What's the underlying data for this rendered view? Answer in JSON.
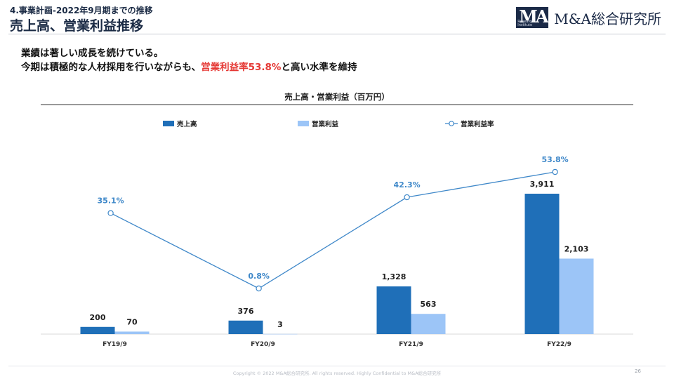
{
  "header": {
    "breadcrumb": "4.事業計画-2022年9月期までの推移",
    "title": "売上高、営業利益推移",
    "logo": {
      "brand": "M&A総合研究所",
      "mark_text": "MA",
      "mark_sub": "Research Institute"
    }
  },
  "lead": {
    "line1": "業績は著しい成長を続けている。",
    "line2_prefix": "今期は積極的な人材採用を行いながらも、",
    "line2_highlight": "営業利益率53.8%",
    "line2_suffix": "と高い水準を維持"
  },
  "footer": {
    "copyright": "Copyright © 2022 M&A総合研究所. All rights reserved. Highly Confidential to M&A総合研究所",
    "page": "26"
  },
  "colors": {
    "sales": "#1f6fb8",
    "profit": "#9cc5f7",
    "margin_line": "#3f88c9",
    "highlight": "#e53935",
    "title_navy": "#1a2a44"
  },
  "chart_data": {
    "type": "bar",
    "title": "売上高・営業利益（百万円）",
    "categories": [
      "FY19/9",
      "FY20/9",
      "FY21/9",
      "FY22/9"
    ],
    "series": [
      {
        "name": "売上高",
        "type": "bar",
        "values": [
          200,
          376,
          1328,
          3911
        ],
        "labels": [
          "200",
          "376",
          "1,328",
          "3,911"
        ]
      },
      {
        "name": "営業利益",
        "type": "bar",
        "values": [
          70,
          3,
          563,
          2103
        ],
        "labels": [
          "70",
          "3",
          "563",
          "2,103"
        ]
      },
      {
        "name": "営業利益率",
        "type": "line",
        "values": [
          35.1,
          0.8,
          42.3,
          53.8
        ],
        "labels": [
          "35.1%",
          "0.8%",
          "42.3%",
          "53.8%"
        ]
      }
    ],
    "legend_position": "top",
    "grid": false
  }
}
